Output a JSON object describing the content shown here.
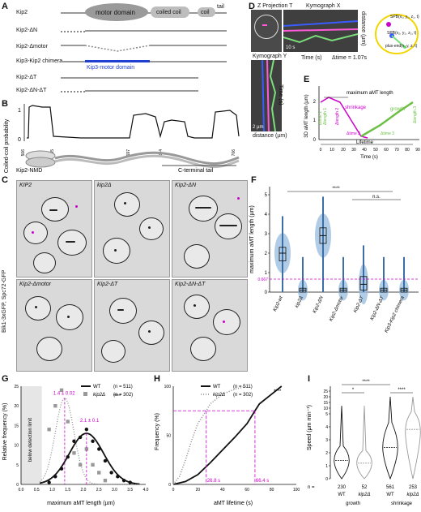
{
  "panels": {
    "A": "A",
    "B": "B",
    "C": "C",
    "D": "D",
    "E": "E",
    "F": "F",
    "G": "G",
    "H": "H",
    "I": "I"
  },
  "panelA": {
    "rows": [
      "Kip2",
      "Kip2-ΔN",
      "Kip2-Δmotor",
      "Kip3-Kip2 chimera",
      "Kip2-ΔT",
      "Kip2-ΔN-ΔT"
    ],
    "domains": {
      "motor": "motor domain",
      "coiled": "coiled coil",
      "coil": "coil",
      "tail": "tail",
      "kip3": "Kip3-motor domain"
    }
  },
  "panelB": {
    "ylabel": "Coiled-coil probability",
    "ticks": [
      "1",
      "0"
    ],
    "residues": [
      "506",
      "535",
      "597",
      "644",
      "706"
    ],
    "labels": {
      "nmd": "Kip2-NMD",
      "ct": "C-terminal tail"
    }
  },
  "panelC": {
    "tiles": [
      "KIP2",
      "kip2Δ",
      "Kip2-ΔN",
      "Kip2-Δmotor",
      "Kip2-ΔT",
      "Kip2-ΔN-ΔT"
    ],
    "side": "Bik1-3xGFP, Spc72-GFP"
  },
  "panelD": {
    "zproj": "Z Projection T",
    "kymoX": "Kymograph X",
    "kymoY": "Kymograph Y",
    "dt": "Δtime = 1.07s",
    "time": "Time (s)",
    "dist": "distance (µm)",
    "scale": "10 s",
    "scaleY": "2 µm",
    "spb1": "SPB(x₁, y₁, z₁, t)",
    "spb2": "SPB(x₂, y₂, z₂, t)",
    "plus": "plus-end(x, y, z, t)"
  },
  "panelE": {
    "ylabel": "3D aMT length (µm)",
    "xlabel": "Time (s)",
    "xticks": [
      "0",
      "10",
      "20",
      "30",
      "40",
      "50",
      "60",
      "70",
      "80",
      "90"
    ],
    "yticks": [
      "0",
      "1",
      "2"
    ],
    "annotations": {
      "max": "maximum aMT length",
      "shrink": "shrinkage",
      "growth": "growth",
      "lifetime": "Lifetime"
    },
    "deltas": [
      "Δtime 1",
      "Δlength 1",
      "Δlength 2",
      "Δtime 2",
      "Δtime 3",
      "Δlength 3"
    ]
  },
  "panelF": {
    "ylabel": "maximum aMT length (µm)",
    "yticks": [
      "0",
      "1",
      "2",
      "3",
      "4",
      "5"
    ],
    "threshold": "0.667",
    "sig": "****",
    "ns": "n.s.",
    "categories": [
      "Kip2-wt",
      "kip2Δ",
      "Kip2-ΔN",
      "Kip2-Δmotor",
      "Kip2-ΔT",
      "Kip2-ΔN-ΔT",
      "Kip3-Kip2 chimera"
    ]
  },
  "panelG": {
    "ylabel": "Relative frequency (%)",
    "xlabel": "maximum aMT length (µm)",
    "detect": "below detection limit",
    "wt": "WT",
    "wt_n": "(n = 511)",
    "kip": "kip2Δ",
    "kip_n": "(n = 302)",
    "sig": "****",
    "fit1": "1.4 ± 0.02",
    "fit2": "2.1 ± 0.1",
    "xticks": [
      "0.0",
      "0.5",
      "1.0",
      "1.5",
      "2.0",
      "2.5",
      "3.0",
      "3.5",
      "4.0"
    ],
    "yticks": [
      "0",
      "5",
      "10",
      "15",
      "20",
      "25"
    ]
  },
  "panelH": {
    "ylabel": "Frequency (%)",
    "xlabel": "aMT lifetime (s)",
    "wt": "WT",
    "wt_n": "(n = 511)",
    "kip": "kip2Δ",
    "kip_n": "(n = 302)",
    "sig": "****",
    "v1": "26.8 s",
    "v2": "66.4 s",
    "xticks": [
      "0",
      "20",
      "40",
      "60",
      "80",
      "100"
    ],
    "yticks": [
      "0",
      "50",
      "100"
    ]
  },
  "panelI": {
    "ylabel": "Speed (µm min⁻¹)",
    "yticks": [
      "0",
      "1",
      "2",
      "3",
      "4",
      "5",
      "10",
      "15",
      "20",
      "25"
    ],
    "sig1": "*",
    "sig2": "****",
    "sig3": "****",
    "nlabel": "n =",
    "ns": [
      "230",
      "52",
      "561",
      "253"
    ],
    "groups": [
      "WT",
      "kip2Δ",
      "WT",
      "kip2Δ"
    ],
    "cats": [
      "growth",
      "shrinkage"
    ]
  },
  "chart_data": [
    {
      "type": "box",
      "ylabel": "maximum aMT length (µm)",
      "categories": [
        "Kip2-wt",
        "kip2Δ",
        "Kip2-ΔN",
        "Kip2-Δmotor",
        "Kip2-ΔT",
        "Kip2-ΔN-ΔT",
        "Kip3-Kip2 chimera"
      ],
      "medians": [
        2.0,
        0.1,
        2.9,
        0.1,
        0.4,
        0.1,
        0.1
      ],
      "q1": [
        1.6,
        0.0,
        2.5,
        0.0,
        0.1,
        0.0,
        0.0
      ],
      "q3": [
        2.3,
        0.2,
        3.3,
        0.2,
        0.8,
        0.2,
        0.2
      ],
      "ylim": [
        0,
        5
      ],
      "threshold": 0.667
    },
    {
      "type": "scatter",
      "xlabel": "maximum aMT length (µm)",
      "ylabel": "Relative frequency (%)",
      "xlim": [
        0,
        4
      ],
      "ylim": [
        0,
        25
      ],
      "series": [
        {
          "name": "WT",
          "x": [
            0.9,
            1.1,
            1.3,
            1.5,
            1.7,
            1.9,
            2.1,
            2.3,
            2.5,
            2.7,
            2.9,
            3.1,
            3.3,
            3.5
          ],
          "y": [
            0.5,
            2,
            4,
            7,
            11,
            12,
            14,
            11,
            9,
            6,
            3,
            2,
            1,
            0.5
          ]
        },
        {
          "name": "kip2Δ",
          "x": [
            0.9,
            1.1,
            1.3,
            1.5,
            1.7,
            1.9,
            2.1,
            2.3,
            2.5,
            2.7
          ],
          "y": [
            14,
            20,
            24,
            16,
            8,
            5,
            9,
            5,
            3,
            1
          ]
        }
      ]
    },
    {
      "type": "line",
      "xlabel": "aMT lifetime (s)",
      "ylabel": "Frequency (%)",
      "xlim": [
        0,
        100
      ],
      "ylim": [
        0,
        100
      ],
      "series": [
        {
          "name": "WT",
          "x": [
            0,
            10,
            20,
            30,
            40,
            50,
            60,
            66.4,
            70,
            80,
            88
          ],
          "y": [
            0,
            3,
            10,
            22,
            35,
            48,
            62,
            75,
            82,
            92,
            100
          ]
        },
        {
          "name": "kip2Δ",
          "x": [
            0,
            5,
            10,
            15,
            20,
            26.8,
            30,
            40,
            50,
            60
          ],
          "y": [
            0,
            8,
            25,
            45,
            62,
            75,
            82,
            92,
            97,
            100
          ]
        }
      ]
    },
    {
      "type": "violin",
      "ylabel": "Speed (µm min⁻¹)",
      "groups": [
        "WT growth",
        "kip2Δ growth",
        "WT shrinkage",
        "kip2Δ shrinkage"
      ],
      "n": [
        230,
        52,
        561,
        253
      ],
      "medians": [
        1.4,
        1.2,
        2.4,
        3.8
      ]
    }
  ]
}
